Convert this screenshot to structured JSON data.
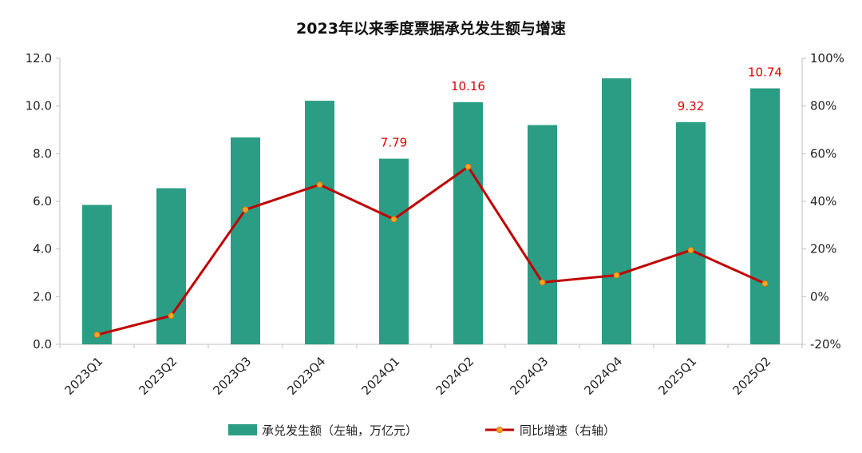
{
  "chart_data": {
    "type": "bar",
    "title": "2023年以来季度票据承兑发生额与增速",
    "categories": [
      "2023Q1",
      "2023Q2",
      "2023Q3",
      "2023Q4",
      "2024Q1",
      "2024Q2",
      "2024Q3",
      "2024Q4",
      "2025Q1",
      "2025Q2"
    ],
    "series": [
      {
        "name": "承兑发生额（左轴，万亿元）",
        "type": "bar",
        "axis": "left",
        "color": "#2a9d84",
        "values": [
          5.85,
          6.55,
          8.68,
          10.22,
          7.79,
          10.16,
          9.2,
          11.16,
          9.32,
          10.74
        ],
        "data_labels": {
          "4": "7.79",
          "5": "10.16",
          "8": "9.32",
          "9": "10.74"
        }
      },
      {
        "name": "同比增速（右轴）",
        "type": "line",
        "axis": "right",
        "color": "#c00000",
        "marker_color": "#f5a623",
        "values": [
          -16,
          -8,
          36.5,
          47,
          32.5,
          54.5,
          6,
          9,
          19.5,
          5.5
        ]
      }
    ],
    "y_left": {
      "lim": [
        0,
        12
      ],
      "ticks": [
        "0.0",
        "2.0",
        "4.0",
        "6.0",
        "8.0",
        "10.0",
        "12.0"
      ]
    },
    "y_right": {
      "lim": [
        -20,
        100
      ],
      "ticks": [
        "-20%",
        "0%",
        "20%",
        "40%",
        "60%",
        "80%",
        "100%"
      ]
    },
    "grid": false,
    "legend_position": "bottom"
  }
}
